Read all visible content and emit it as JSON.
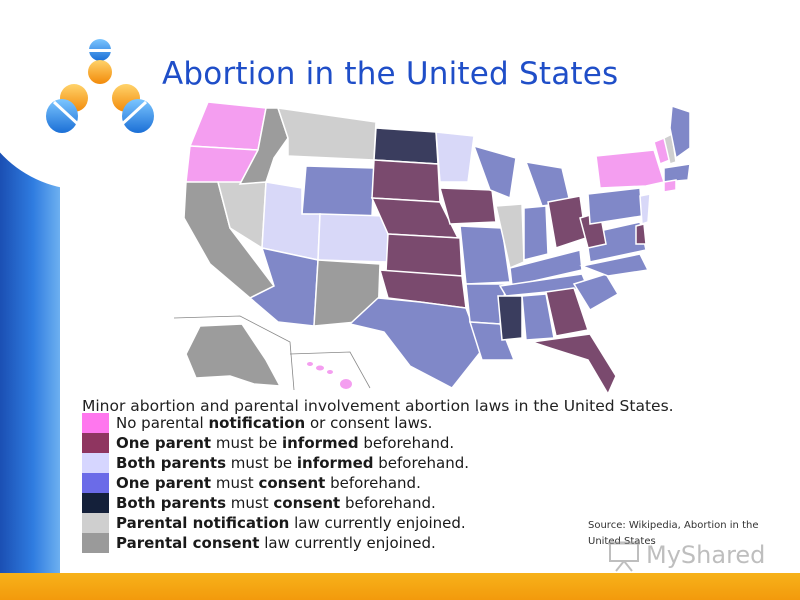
{
  "slide": {
    "title": "Abortion in the United States",
    "caption": "Minor abortion and parental involvement abortion laws in the United States.",
    "source_line1": "Source: Wikipedia, Abortion in the",
    "source_line2": "United States",
    "watermark": "MyShared"
  },
  "legend": [
    {
      "color": "#ff77ee",
      "pre": "No parental ",
      "bold": "notification",
      "post": " or consent laws."
    },
    {
      "color": "#8f3560",
      "pre": "",
      "bold": "One parent",
      "post": " must be ",
      "bold2": "informed",
      "post2": " beforehand."
    },
    {
      "color": "#d6d6ff",
      "pre": "",
      "bold": "Both parents",
      "post": " must be ",
      "bold2": "informed",
      "post2": " beforehand."
    },
    {
      "color": "#6b6be8",
      "pre": "",
      "bold": "One parent",
      "post": " must ",
      "bold2": "consent",
      "post2": " beforehand."
    },
    {
      "color": "#14203a",
      "pre": "",
      "bold": "Both parents",
      "post": " must ",
      "bold2": "consent",
      "post2": " beforehand."
    },
    {
      "color": "#cfcfcf",
      "pre": "",
      "bold": "Parental notification",
      "post": " law currently enjoined."
    },
    {
      "color": "#9a9a9a",
      "pre": "",
      "bold": "Parental consent",
      "post": " law currently enjoined."
    }
  ],
  "colors": {
    "accent": "#1f4ec8",
    "side_bar": "#2f7ce0",
    "bottom_bar": "#f7a812",
    "no_laws": "#f49ef0",
    "one_informed": "#7a4a6e",
    "both_informed": "#d8d8f8",
    "one_consent": "#8088c8",
    "both_consent": "#3a3d5e",
    "notification_enjoined": "#cfcfcf",
    "consent_enjoined": "#9c9c9c"
  },
  "icons": {
    "logo": "figures-logo-icon",
    "map": "us-map-image"
  }
}
